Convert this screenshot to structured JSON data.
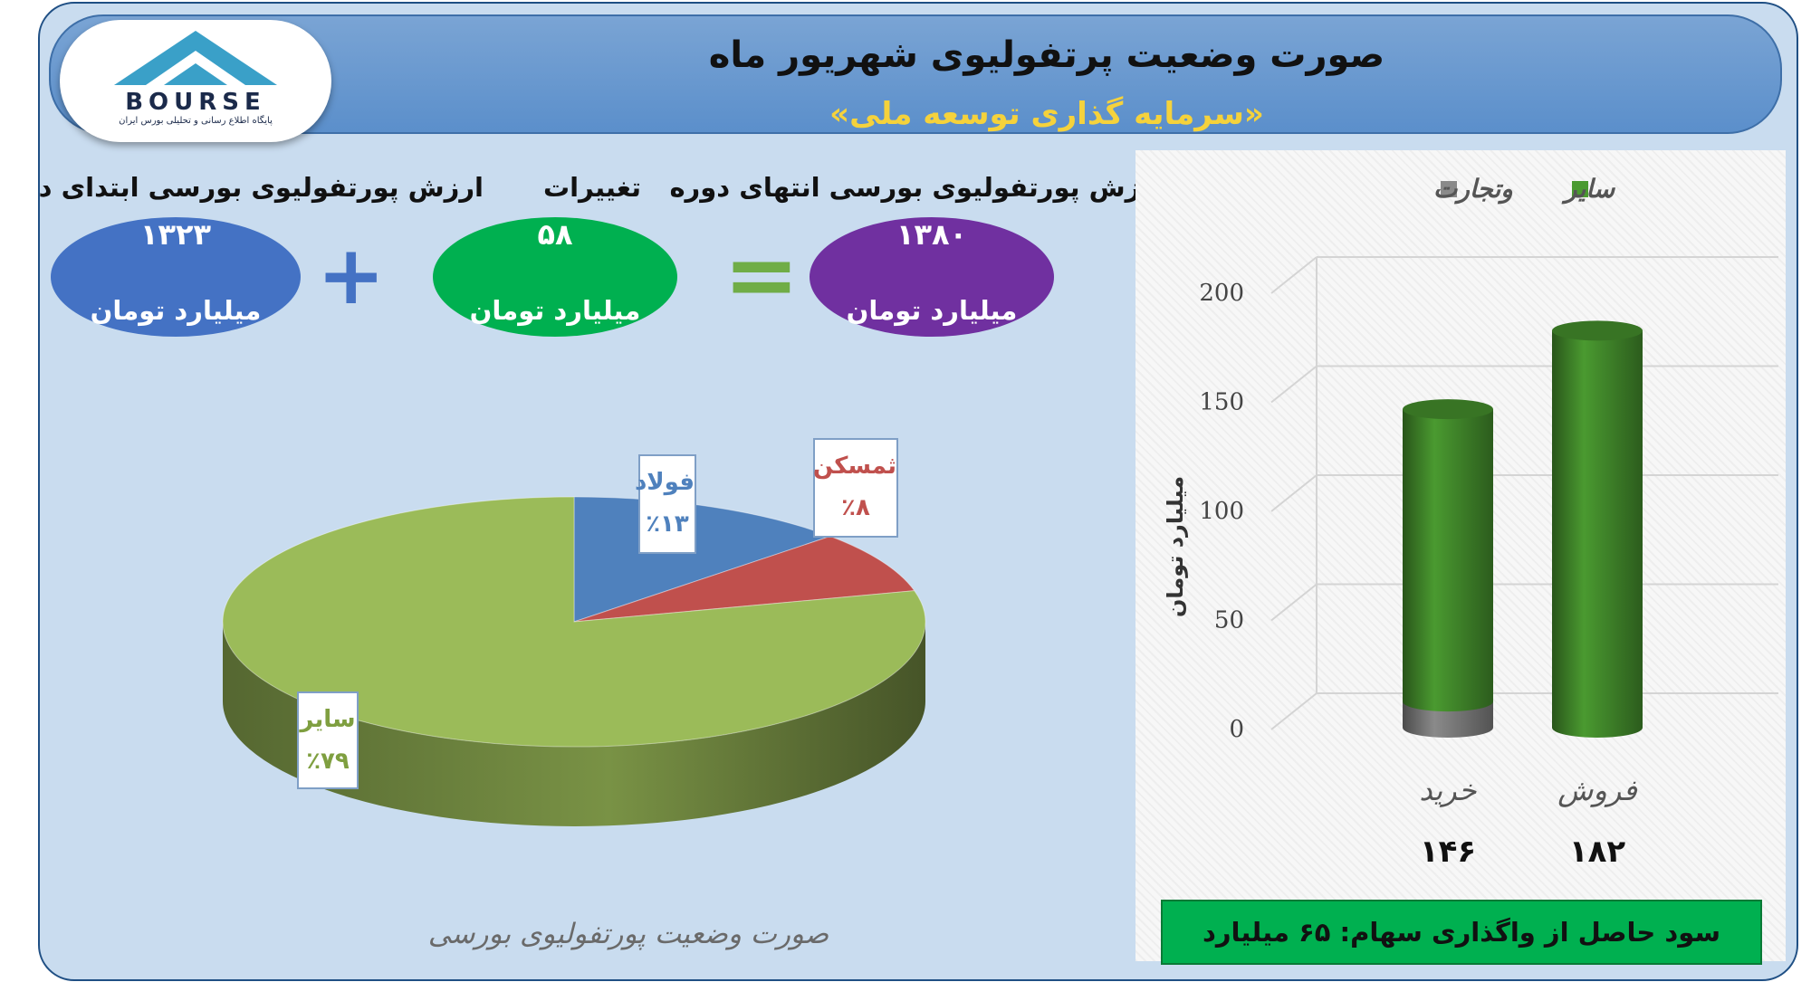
{
  "header": {
    "title": "صورت وضعیت پرتفولیوی شهریور ماه",
    "subtitle": "«سرمایه گذاری توسعه ملی»"
  },
  "logo": {
    "text": "BOURSE",
    "subtext": "پایگاه اطلاع رسانی و تحلیلی بورس ایران"
  },
  "summary": {
    "start_label": "ارزش پورتفولیوی بورسی ابتدای دوره",
    "start_value": "۱۳۲۳",
    "change_label": "تغییرات",
    "change_value": "۵۸",
    "end_label": "ارزش پورتفولیوی بورسی انتهای دوره",
    "end_value": "۱۳۸۰",
    "unit": "میلیارد تومان",
    "plus": "+",
    "equals": "="
  },
  "colors": {
    "start": "#4472c4",
    "change": "#00b050",
    "end": "#7030a0",
    "plus": "#4472c4",
    "equals": "#70ad47",
    "folad": "#4f81bd",
    "thamaskan": "#c0504d",
    "other": "#9bbb59",
    "sayer_bar": "#4a9a30",
    "tejarat_bar": "#8a8a8a"
  },
  "chart_data": [
    {
      "type": "pie",
      "title": "صورت وضعیت پورتفولیوی بورسی",
      "slices": [
        {
          "label": "فولاد",
          "value": 13,
          "display": "٪۱۳"
        },
        {
          "label": "ثمسکن",
          "value": 8,
          "display": "٪۸"
        },
        {
          "label": "سایر",
          "value": 79,
          "display": "٪۷۹"
        }
      ]
    },
    {
      "type": "bar",
      "ylabel": "میلیارد تومان",
      "ylim": [
        0,
        200
      ],
      "yticks": [
        "0",
        "50",
        "100",
        "150",
        "200"
      ],
      "categories": [
        "خرید",
        "فروش"
      ],
      "totals": [
        "۱۴۶",
        "۱۸۲"
      ],
      "legend": "top",
      "series": [
        {
          "name": "وتجارت",
          "values": [
            12,
            0
          ]
        },
        {
          "name": "سایر",
          "values": [
            134,
            182
          ]
        }
      ]
    }
  ],
  "footer": {
    "profit": "سود حاصل از واگذاری سهام: ۶۵ میلیارد تومان"
  }
}
